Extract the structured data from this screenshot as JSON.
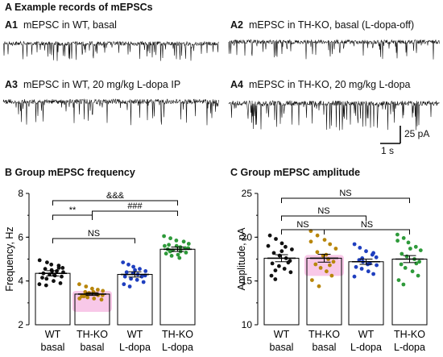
{
  "section_a": {
    "title": "A  Example records of mEPSCs",
    "traces": [
      {
        "id": "A1",
        "label": "mEPSC in  WT, basal",
        "color": "#111111"
      },
      {
        "id": "A2",
        "label": "mEPSC in  TH-KO, basal (L-dopa-off)",
        "color": "#111111"
      },
      {
        "id": "A3",
        "label": "mEPSC in  WT, 20 mg/kg L-dopa IP",
        "color": "#111111"
      },
      {
        "id": "A4",
        "label": "mEPSC in  TH-KO, 20 mg/kg L-dopa",
        "color": "#111111"
      }
    ],
    "scale_bar": {
      "y_label": "25 pA",
      "x_label": "1 s"
    }
  },
  "chart_data": [
    {
      "type": "bar",
      "title": "B  Group mEPSC frequency",
      "ylabel": "Frequency, Hz",
      "ylim": [
        2,
        8
      ],
      "yticks": [
        2,
        4,
        6,
        8
      ],
      "categories": [
        [
          "WT",
          "basal"
        ],
        [
          "TH-KO",
          "basal"
        ],
        [
          "WT",
          "L-dopa"
        ],
        [
          "TH-KO",
          "L-dopa"
        ]
      ],
      "values": [
        4.35,
        3.4,
        4.3,
        5.45
      ],
      "sem": [
        0.12,
        0.06,
        0.12,
        0.1
      ],
      "point_colors": [
        "#111111",
        "#b8860b",
        "#1f3fbf",
        "#2e9a3a"
      ],
      "highlight_bar": 1,
      "highlight_color": "#f8c8e8",
      "points": [
        [
          4.95,
          4.85,
          4.75,
          4.7,
          4.6,
          4.55,
          4.5,
          4.45,
          4.4,
          4.35,
          4.3,
          4.25,
          4.2,
          4.15,
          4.1,
          4.0,
          3.9,
          3.85,
          3.8,
          4.45,
          4.6
        ],
        [
          3.85,
          3.75,
          3.65,
          3.6,
          3.55,
          3.5,
          3.45,
          3.4,
          3.35,
          3.3,
          3.25,
          3.2,
          3.15,
          3.3,
          3.4,
          3.5,
          3.35,
          3.2
        ],
        [
          4.85,
          4.75,
          4.65,
          4.55,
          4.45,
          4.4,
          4.35,
          4.3,
          4.25,
          4.2,
          4.1,
          4.05,
          3.95,
          3.85,
          3.75,
          4.5,
          4.2
        ],
        [
          6.05,
          5.95,
          5.85,
          5.8,
          5.7,
          5.65,
          5.6,
          5.55,
          5.5,
          5.45,
          5.4,
          5.35,
          5.3,
          5.25,
          5.15,
          5.05,
          5.5,
          5.6,
          5.35,
          5.2
        ]
      ],
      "comparisons": [
        {
          "from": 0,
          "to": 1,
          "label": "**"
        },
        {
          "from": 0,
          "to": 3,
          "label": "&&&"
        },
        {
          "from": 1,
          "to": 3,
          "label": "###"
        },
        {
          "from": 0,
          "to": 2,
          "label": "NS"
        }
      ]
    },
    {
      "type": "bar",
      "title": "C  Group mEPSC amplitude",
      "ylabel": "Amplitude, pA",
      "ylim": [
        10,
        25
      ],
      "yticks": [
        10,
        15,
        20,
        25
      ],
      "categories": [
        [
          "WT",
          "basal"
        ],
        [
          "TH-KO",
          "basal"
        ],
        [
          "WT",
          "L-dopa"
        ],
        [
          "TH-KO",
          "L-dopa"
        ]
      ],
      "values": [
        17.6,
        17.6,
        17.2,
        17.5
      ],
      "sem": [
        0.4,
        0.45,
        0.3,
        0.4
      ],
      "point_colors": [
        "#111111",
        "#b8860b",
        "#1f3fbf",
        "#2e9a3a"
      ],
      "highlight_bar": 1,
      "highlight_color": "#f8c8e8",
      "points": [
        [
          20.2,
          19.8,
          19.3,
          18.9,
          18.6,
          18.2,
          17.9,
          17.6,
          17.3,
          17.0,
          16.7,
          16.4,
          16.0,
          15.6,
          15.2,
          18.4,
          17.1,
          19.0,
          16.2
        ],
        [
          20.7,
          20.2,
          19.7,
          19.2,
          18.7,
          18.3,
          17.9,
          17.5,
          17.2,
          16.9,
          16.5,
          16.1,
          15.6,
          15.1,
          14.4,
          18.0,
          16.8,
          19.5
        ],
        [
          19.2,
          18.8,
          18.4,
          18.0,
          17.7,
          17.4,
          17.2,
          17.0,
          16.8,
          16.6,
          16.4,
          16.1,
          15.8,
          15.5,
          17.6,
          16.9,
          18.2
        ],
        [
          20.3,
          19.9,
          19.4,
          18.9,
          18.5,
          18.1,
          17.8,
          17.5,
          17.2,
          16.9,
          16.5,
          16.1,
          15.6,
          15.1,
          14.6,
          18.7,
          17.0,
          19.6
        ]
      ],
      "comparisons": [
        {
          "from": 0,
          "to": 3,
          "label": "NS"
        },
        {
          "from": 0,
          "to": 2,
          "label": "NS"
        },
        {
          "from": 0,
          "to": 1,
          "label": "NS"
        },
        {
          "from": 1,
          "to": 3,
          "label": "NS"
        }
      ]
    }
  ]
}
